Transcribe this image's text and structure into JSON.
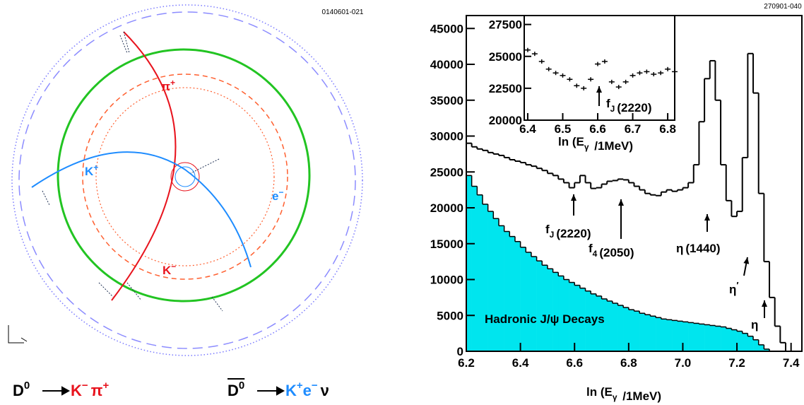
{
  "event_display": {
    "code": "0140601-021",
    "track_labels": [
      {
        "text": "π",
        "sup": "+"
      },
      {
        "text": "K",
        "sup": "+"
      },
      {
        "text": "e",
        "sup": "−"
      },
      {
        "text": "K",
        "sup": "−"
      }
    ],
    "decays": [
      {
        "parent": "D",
        "parent_sup": "0",
        "bar": false,
        "products": [
          {
            "text": "K",
            "sup": "−"
          },
          {
            "text": "π",
            "sup": "+"
          }
        ]
      },
      {
        "parent": "D",
        "parent_sup": "0",
        "bar": true,
        "products": [
          {
            "text": "K",
            "sup": "+"
          },
          {
            "text": "e",
            "sup": "−"
          },
          {
            "text": "ν"
          }
        ]
      }
    ]
  },
  "chart_data": [
    {
      "type": "histogram",
      "code": "270901-040",
      "x_label": {
        "text": "ln (E",
        "sub": "γ",
        "rest": " /1MeV)"
      },
      "bins": [
        6.2,
        6.22,
        6.24,
        6.26,
        6.28,
        6.3,
        6.32,
        6.34,
        6.36,
        6.38,
        6.4,
        6.42,
        6.44,
        6.46,
        6.48,
        6.5,
        6.52,
        6.54,
        6.56,
        6.58,
        6.6,
        6.62,
        6.64,
        6.66,
        6.68,
        6.7,
        6.72,
        6.74,
        6.76,
        6.78,
        6.8,
        6.82,
        6.84,
        6.86,
        6.88,
        6.9,
        6.92,
        6.94,
        6.96,
        6.98,
        7.0,
        7.02,
        7.04,
        7.06,
        7.08,
        7.1,
        7.12,
        7.14,
        7.16,
        7.18,
        7.2,
        7.22,
        7.24,
        7.26,
        7.28,
        7.3,
        7.32,
        7.34,
        7.36,
        7.38,
        7.4
      ],
      "series": [
        {
          "color": "#00e5ee",
          "style": "filled",
          "values": [
            24500,
            23000,
            21800,
            20500,
            19500,
            18500,
            17500,
            16700,
            16000,
            15300,
            14500,
            13800,
            13200,
            12600,
            12000,
            11500,
            11000,
            10500,
            10000,
            9600,
            9200,
            8800,
            8400,
            8000,
            7700,
            7300,
            7000,
            6700,
            6400,
            6100,
            5800,
            5600,
            5300,
            5100,
            4900,
            4700,
            4500,
            4400,
            4300,
            4200,
            4100,
            4000,
            3900,
            3800,
            3700,
            3600,
            3500,
            3400,
            3200,
            3000,
            2800,
            2500,
            2100,
            1600,
            900,
            300,
            0,
            0,
            0,
            0
          ]
        },
        {
          "color": "#000000",
          "style": "step",
          "values": [
            29000,
            28500,
            28200,
            28000,
            27700,
            27500,
            27300,
            27000,
            26700,
            26500,
            26300,
            26000,
            25800,
            25500,
            25200,
            24800,
            24500,
            24000,
            23500,
            22800,
            23500,
            24500,
            23500,
            22700,
            22800,
            23300,
            23700,
            23800,
            24000,
            23900,
            23500,
            23000,
            22500,
            22000,
            21800,
            21700,
            22200,
            22500,
            22300,
            22500,
            22800,
            23500,
            26000,
            32000,
            38000,
            40500,
            35000,
            26000,
            21000,
            18800,
            19500,
            27000,
            41500,
            36000,
            22000,
            12500,
            7500,
            3500,
            1200,
            0
          ]
        }
      ],
      "xlim": [
        6.2,
        7.44
      ],
      "ylim": [
        0,
        46800
      ],
      "xticks": [
        6.2,
        6.4,
        6.6,
        6.8,
        {
          "value": 7,
          "label": "7.0"
        },
        7.2,
        7.4
      ],
      "yticks": [
        0,
        5000,
        10000,
        15000,
        20000,
        25000,
        30000,
        35000,
        40000,
        45000
      ],
      "annotations": [
        {
          "text": "f",
          "sub": "J",
          "rest": "(2220)"
        },
        {
          "text": "f",
          "sub": "4",
          "rest": "(2050)"
        },
        {
          "text": "η",
          "rest": "(1440)"
        },
        {
          "text": "η",
          "sup": "′"
        },
        {
          "text": "η"
        },
        {
          "text": "Hadronic J/ψ Decays"
        }
      ]
    },
    {
      "type": "scatter",
      "color": "#000000",
      "x_label": {
        "text": "ln (E",
        "sub": "γ",
        "rest": " /1MeV)"
      },
      "x": [
        6.4,
        6.42,
        6.44,
        6.46,
        6.48,
        6.5,
        6.52,
        6.54,
        6.56,
        6.58,
        6.6,
        6.62,
        6.64,
        6.66,
        6.68,
        6.7,
        6.72,
        6.74,
        6.76,
        6.78,
        6.8,
        6.82
      ],
      "values": [
        25500,
        25200,
        24600,
        24000,
        23700,
        23500,
        23200,
        22700,
        22500,
        23200,
        24400,
        24600,
        23000,
        22600,
        23000,
        23500,
        23700,
        23800,
        23600,
        23700,
        24000,
        23800
      ],
      "xlim": [
        6.39,
        6.82
      ],
      "ylim": [
        20000,
        28200
      ],
      "xticks": [
        6.4,
        6.5,
        6.6,
        6.7,
        6.8
      ],
      "yticks": [
        20000,
        22500,
        25000,
        27500
      ],
      "annotations": [
        {
          "text": "f",
          "sub": "J",
          "rest": "(2220)"
        }
      ]
    }
  ]
}
